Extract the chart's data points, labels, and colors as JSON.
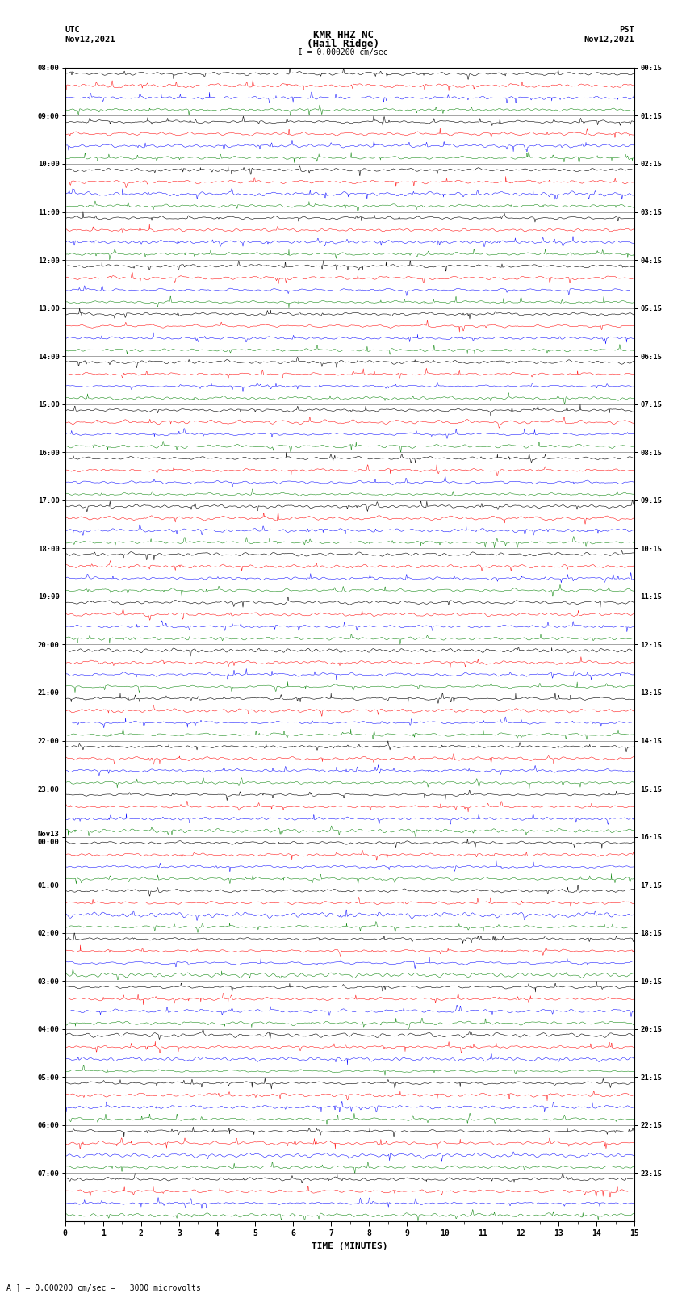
{
  "title_line1": "KMR HHZ NC",
  "title_line2": "(Hail Ridge)",
  "scale_label": "I = 0.000200 cm/sec",
  "left_label_line1": "UTC",
  "left_label_line2": "Nov12,2021",
  "right_label_line1": "PST",
  "right_label_line2": "Nov12,2021",
  "bottom_label": "TIME (MINUTES)",
  "caption": "A ] = 0.000200 cm/sec =   3000 microvolts",
  "utc_times": [
    "08:00",
    "09:00",
    "10:00",
    "11:00",
    "12:00",
    "13:00",
    "14:00",
    "15:00",
    "16:00",
    "17:00",
    "18:00",
    "19:00",
    "20:00",
    "21:00",
    "22:00",
    "23:00",
    "Nov13\n00:00",
    "01:00",
    "02:00",
    "03:00",
    "04:00",
    "05:00",
    "06:00",
    "07:00"
  ],
  "pst_times": [
    "00:15",
    "01:15",
    "02:15",
    "03:15",
    "04:15",
    "05:15",
    "06:15",
    "07:15",
    "08:15",
    "09:15",
    "10:15",
    "11:15",
    "12:15",
    "13:15",
    "14:15",
    "15:15",
    "16:15",
    "17:15",
    "18:15",
    "19:15",
    "20:15",
    "21:15",
    "22:15",
    "23:15"
  ],
  "num_hours": 24,
  "traces_per_hour": 4,
  "colors": [
    "black",
    "red",
    "blue",
    "green"
  ],
  "fig_width": 8.5,
  "fig_height": 16.13,
  "x_min": 0,
  "x_max": 15,
  "x_ticks": [
    0,
    1,
    2,
    3,
    4,
    5,
    6,
    7,
    8,
    9,
    10,
    11,
    12,
    13,
    14,
    15
  ],
  "background_color": "white",
  "dpi": 100
}
